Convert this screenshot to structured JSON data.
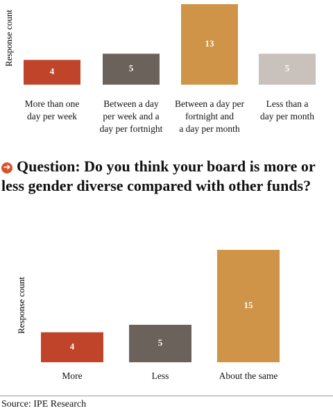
{
  "chart_data": [
    {
      "type": "bar",
      "y_label": "Response count",
      "categories": [
        "More than one\nday per week",
        "Between a day\nper week and a\nday per fortnight",
        "Between a day per\nfortnight and\na day per month",
        "Less than a\nday per month"
      ],
      "values": [
        4,
        5,
        13,
        5
      ],
      "colors": [
        "#c0442a",
        "#6b625c",
        "#cf9447",
        "#c9c1bc"
      ]
    },
    {
      "type": "bar",
      "y_label": "Response count",
      "categories": [
        "More",
        "Less",
        "About the same"
      ],
      "values": [
        4,
        5,
        15
      ],
      "colors": [
        "#c0442a",
        "#6b625c",
        "#cf9447"
      ]
    }
  ],
  "question": "Question: Do you think your board is more or less gender diverse compared with other funds?",
  "source": "Source: IPE Research"
}
